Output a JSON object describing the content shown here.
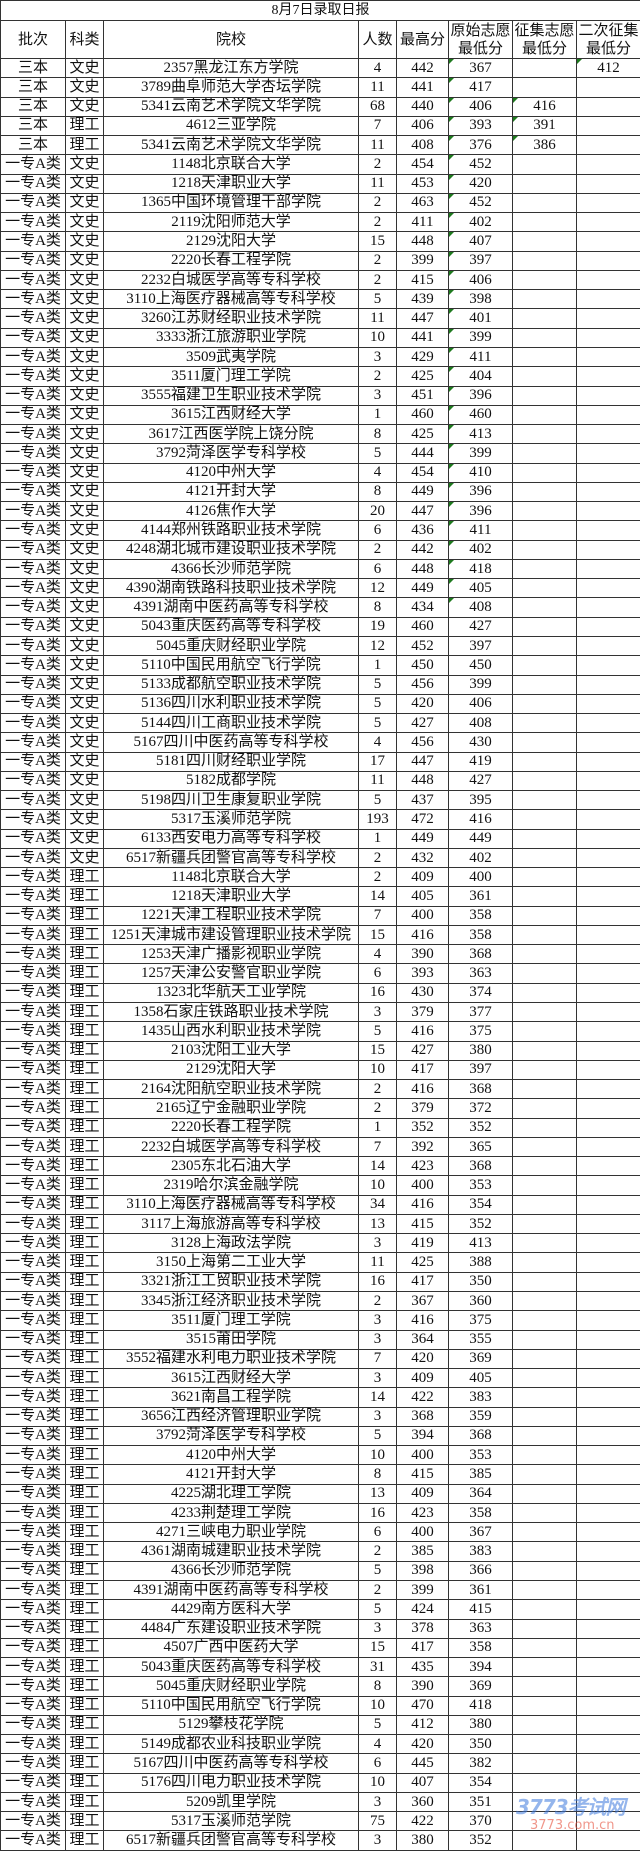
{
  "title": "8月7日录取日报",
  "headers": [
    "批次",
    "科类",
    "院校",
    "人数",
    "最高分",
    "原始志愿\n最低分",
    "征集志愿\n最低分",
    "二次征集\n最低分"
  ],
  "rows": [
    [
      "三本",
      "文史",
      "2357黑龙江东方学院",
      "4",
      "442",
      "367",
      "",
      "412"
    ],
    [
      "三本",
      "文史",
      "3789曲阜师范大学杏坛学院",
      "11",
      "441",
      "417",
      "",
      ""
    ],
    [
      "三本",
      "文史",
      "5341云南艺术学院文华学院",
      "68",
      "440",
      "406",
      "416",
      ""
    ],
    [
      "三本",
      "理工",
      "4612三亚学院",
      "7",
      "406",
      "393",
      "391",
      ""
    ],
    [
      "三本",
      "理工",
      "5341云南艺术学院文华学院",
      "11",
      "408",
      "376",
      "386",
      ""
    ],
    [
      "一专A类",
      "文史",
      "1148北京联合大学",
      "2",
      "454",
      "452",
      "",
      ""
    ],
    [
      "一专A类",
      "文史",
      "1218天津职业大学",
      "11",
      "453",
      "420",
      "",
      ""
    ],
    [
      "一专A类",
      "文史",
      "1365中国环境管理干部学院",
      "2",
      "463",
      "452",
      "",
      ""
    ],
    [
      "一专A类",
      "文史",
      "2119沈阳师范大学",
      "2",
      "411",
      "402",
      "",
      ""
    ],
    [
      "一专A类",
      "文史",
      "2129沈阳大学",
      "15",
      "448",
      "407",
      "",
      ""
    ],
    [
      "一专A类",
      "文史",
      "2220长春工程学院",
      "2",
      "399",
      "397",
      "",
      ""
    ],
    [
      "一专A类",
      "文史",
      "2232白城医学高等专科学校",
      "2",
      "415",
      "406",
      "",
      ""
    ],
    [
      "一专A类",
      "文史",
      "3110上海医疗器械高等专科学校",
      "5",
      "439",
      "398",
      "",
      ""
    ],
    [
      "一专A类",
      "文史",
      "3260江苏财经职业技术学院",
      "11",
      "447",
      "401",
      "",
      ""
    ],
    [
      "一专A类",
      "文史",
      "3333浙江旅游职业学院",
      "10",
      "441",
      "399",
      "",
      ""
    ],
    [
      "一专A类",
      "文史",
      "3509武夷学院",
      "3",
      "429",
      "411",
      "",
      ""
    ],
    [
      "一专A类",
      "文史",
      "3511厦门理工学院",
      "2",
      "425",
      "404",
      "",
      ""
    ],
    [
      "一专A类",
      "文史",
      "3555福建卫生职业技术学院",
      "3",
      "451",
      "396",
      "",
      ""
    ],
    [
      "一专A类",
      "文史",
      "3615江西财经大学",
      "1",
      "460",
      "460",
      "",
      ""
    ],
    [
      "一专A类",
      "文史",
      "3617江西医学院上饶分院",
      "8",
      "425",
      "413",
      "",
      ""
    ],
    [
      "一专A类",
      "文史",
      "3792菏泽医学专科学校",
      "5",
      "444",
      "399",
      "",
      ""
    ],
    [
      "一专A类",
      "文史",
      "4120中州大学",
      "4",
      "454",
      "410",
      "",
      ""
    ],
    [
      "一专A类",
      "文史",
      "4121开封大学",
      "8",
      "449",
      "396",
      "",
      ""
    ],
    [
      "一专A类",
      "文史",
      "4126焦作大学",
      "20",
      "447",
      "396",
      "",
      ""
    ],
    [
      "一专A类",
      "文史",
      "4144郑州铁路职业技术学院",
      "6",
      "436",
      "411",
      "",
      ""
    ],
    [
      "一专A类",
      "文史",
      "4248湖北城市建设职业技术学院",
      "2",
      "442",
      "402",
      "",
      ""
    ],
    [
      "一专A类",
      "文史",
      "4366长沙师范学院",
      "6",
      "448",
      "418",
      "",
      ""
    ],
    [
      "一专A类",
      "文史",
      "4390湖南铁路科技职业技术学院",
      "12",
      "449",
      "405",
      "",
      ""
    ],
    [
      "一专A类",
      "文史",
      "4391湖南中医药高等专科学校",
      "8",
      "434",
      "408",
      "",
      ""
    ],
    [
      "一专A类",
      "文史",
      "5043重庆医药高等专科学校",
      "19",
      "460",
      "427",
      "",
      ""
    ],
    [
      "一专A类",
      "文史",
      "5045重庆财经职业学院",
      "12",
      "452",
      "397",
      "",
      ""
    ],
    [
      "一专A类",
      "文史",
      "5110中国民用航空飞行学院",
      "1",
      "450",
      "450",
      "",
      ""
    ],
    [
      "一专A类",
      "文史",
      "5133成都航空职业技术学院",
      "5",
      "456",
      "399",
      "",
      ""
    ],
    [
      "一专A类",
      "文史",
      "5136四川水利职业技术学院",
      "5",
      "420",
      "406",
      "",
      ""
    ],
    [
      "一专A类",
      "文史",
      "5144四川工商职业技术学院",
      "5",
      "427",
      "408",
      "",
      ""
    ],
    [
      "一专A类",
      "文史",
      "5167四川中医药高等专科学校",
      "4",
      "456",
      "430",
      "",
      ""
    ],
    [
      "一专A类",
      "文史",
      "5181四川财经职业学院",
      "17",
      "447",
      "419",
      "",
      ""
    ],
    [
      "一专A类",
      "文史",
      "5182成都学院",
      "11",
      "448",
      "427",
      "",
      ""
    ],
    [
      "一专A类",
      "文史",
      "5198四川卫生康复职业学院",
      "5",
      "437",
      "395",
      "",
      ""
    ],
    [
      "一专A类",
      "文史",
      "5317玉溪师范学院",
      "193",
      "472",
      "416",
      "",
      ""
    ],
    [
      "一专A类",
      "文史",
      "6133西安电力高等专科学校",
      "1",
      "449",
      "449",
      "",
      ""
    ],
    [
      "一专A类",
      "文史",
      "6517新疆兵团警官高等专科学校",
      "2",
      "432",
      "402",
      "",
      ""
    ],
    [
      "一专A类",
      "理工",
      "1148北京联合大学",
      "2",
      "409",
      "400",
      "",
      ""
    ],
    [
      "一专A类",
      "理工",
      "1218天津职业大学",
      "14",
      "405",
      "361",
      "",
      ""
    ],
    [
      "一专A类",
      "理工",
      "1221天津工程职业技术学院",
      "7",
      "400",
      "358",
      "",
      ""
    ],
    [
      "一专A类",
      "理工",
      "1251天津城市建设管理职业技术学院",
      "15",
      "416",
      "358",
      "",
      ""
    ],
    [
      "一专A类",
      "理工",
      "1253天津广播影视职业学院",
      "4",
      "390",
      "368",
      "",
      ""
    ],
    [
      "一专A类",
      "理工",
      "1257天津公安警官职业学院",
      "6",
      "393",
      "363",
      "",
      ""
    ],
    [
      "一专A类",
      "理工",
      "1323北华航天工业学院",
      "16",
      "430",
      "374",
      "",
      ""
    ],
    [
      "一专A类",
      "理工",
      "1358石家庄铁路职业技术学院",
      "3",
      "379",
      "377",
      "",
      ""
    ],
    [
      "一专A类",
      "理工",
      "1435山西水利职业技术学院",
      "5",
      "416",
      "375",
      "",
      ""
    ],
    [
      "一专A类",
      "理工",
      "2103沈阳工业大学",
      "15",
      "427",
      "380",
      "",
      ""
    ],
    [
      "一专A类",
      "理工",
      "2129沈阳大学",
      "10",
      "417",
      "397",
      "",
      ""
    ],
    [
      "一专A类",
      "理工",
      "2164沈阳航空职业技术学院",
      "2",
      "416",
      "368",
      "",
      ""
    ],
    [
      "一专A类",
      "理工",
      "2165辽宁金融职业学院",
      "2",
      "379",
      "372",
      "",
      ""
    ],
    [
      "一专A类",
      "理工",
      "2220长春工程学院",
      "1",
      "352",
      "352",
      "",
      ""
    ],
    [
      "一专A类",
      "理工",
      "2232白城医学高等专科学校",
      "7",
      "392",
      "365",
      "",
      ""
    ],
    [
      "一专A类",
      "理工",
      "2305东北石油大学",
      "14",
      "423",
      "368",
      "",
      ""
    ],
    [
      "一专A类",
      "理工",
      "2319哈尔滨金融学院",
      "10",
      "400",
      "353",
      "",
      ""
    ],
    [
      "一专A类",
      "理工",
      "3110上海医疗器械高等专科学校",
      "34",
      "416",
      "354",
      "",
      ""
    ],
    [
      "一专A类",
      "理工",
      "3117上海旅游高等专科学校",
      "13",
      "415",
      "352",
      "",
      ""
    ],
    [
      "一专A类",
      "理工",
      "3128上海政法学院",
      "3",
      "419",
      "413",
      "",
      ""
    ],
    [
      "一专A类",
      "理工",
      "3150上海第二工业大学",
      "11",
      "425",
      "388",
      "",
      ""
    ],
    [
      "一专A类",
      "理工",
      "3321浙江工贸职业技术学院",
      "16",
      "417",
      "350",
      "",
      ""
    ],
    [
      "一专A类",
      "理工",
      "3345浙江经济职业技术学院",
      "2",
      "367",
      "360",
      "",
      ""
    ],
    [
      "一专A类",
      "理工",
      "3511厦门理工学院",
      "3",
      "416",
      "375",
      "",
      ""
    ],
    [
      "一专A类",
      "理工",
      "3515莆田学院",
      "3",
      "364",
      "355",
      "",
      ""
    ],
    [
      "一专A类",
      "理工",
      "3552福建水利电力职业技术学院",
      "7",
      "420",
      "369",
      "",
      ""
    ],
    [
      "一专A类",
      "理工",
      "3615江西财经大学",
      "3",
      "409",
      "405",
      "",
      ""
    ],
    [
      "一专A类",
      "理工",
      "3621南昌工程学院",
      "14",
      "422",
      "383",
      "",
      ""
    ],
    [
      "一专A类",
      "理工",
      "3656江西经济管理职业学院",
      "3",
      "368",
      "359",
      "",
      ""
    ],
    [
      "一专A类",
      "理工",
      "3792菏泽医学专科学校",
      "5",
      "394",
      "368",
      "",
      ""
    ],
    [
      "一专A类",
      "理工",
      "4120中州大学",
      "10",
      "400",
      "353",
      "",
      ""
    ],
    [
      "一专A类",
      "理工",
      "4121开封大学",
      "8",
      "415",
      "385",
      "",
      ""
    ],
    [
      "一专A类",
      "理工",
      "4225湖北理工学院",
      "13",
      "409",
      "364",
      "",
      ""
    ],
    [
      "一专A类",
      "理工",
      "4233荆楚理工学院",
      "16",
      "423",
      "358",
      "",
      ""
    ],
    [
      "一专A类",
      "理工",
      "4271三峡电力职业学院",
      "6",
      "400",
      "367",
      "",
      ""
    ],
    [
      "一专A类",
      "理工",
      "4361湖南城建职业技术学院",
      "2",
      "385",
      "383",
      "",
      ""
    ],
    [
      "一专A类",
      "理工",
      "4366长沙师范学院",
      "5",
      "398",
      "366",
      "",
      ""
    ],
    [
      "一专A类",
      "理工",
      "4391湖南中医药高等专科学校",
      "2",
      "399",
      "361",
      "",
      ""
    ],
    [
      "一专A类",
      "理工",
      "4429南方医科大学",
      "5",
      "424",
      "415",
      "",
      ""
    ],
    [
      "一专A类",
      "理工",
      "4484广东建设职业技术学院",
      "3",
      "378",
      "363",
      "",
      ""
    ],
    [
      "一专A类",
      "理工",
      "4507广西中医药大学",
      "15",
      "417",
      "358",
      "",
      ""
    ],
    [
      "一专A类",
      "理工",
      "5043重庆医药高等专科学校",
      "31",
      "435",
      "394",
      "",
      ""
    ],
    [
      "一专A类",
      "理工",
      "5045重庆财经职业学院",
      "8",
      "390",
      "369",
      "",
      ""
    ],
    [
      "一专A类",
      "理工",
      "5110中国民用航空飞行学院",
      "10",
      "470",
      "418",
      "",
      ""
    ],
    [
      "一专A类",
      "理工",
      "5129攀枝花学院",
      "5",
      "412",
      "380",
      "",
      ""
    ],
    [
      "一专A类",
      "理工",
      "5149成都农业科技职业学院",
      "4",
      "420",
      "350",
      "",
      ""
    ],
    [
      "一专A类",
      "理工",
      "5167四川中医药高等专科学校",
      "6",
      "445",
      "382",
      "",
      ""
    ],
    [
      "一专A类",
      "理工",
      "5176四川电力职业技术学院",
      "10",
      "407",
      "354",
      "",
      ""
    ],
    [
      "一专A类",
      "理工",
      "5209凯里学院",
      "3",
      "360",
      "351",
      "",
      ""
    ],
    [
      "一专A类",
      "理工",
      "5317玉溪师范学院",
      "75",
      "422",
      "370",
      "",
      ""
    ],
    [
      "一专A类",
      "理工",
      "6517新疆兵团警官高等专科学校",
      "3",
      "380",
      "352",
      "",
      ""
    ]
  ],
  "marker_color": "#1e7a1e",
  "watermark": {
    "logo": "3773考试网",
    "domain": "3773.com.cn"
  }
}
